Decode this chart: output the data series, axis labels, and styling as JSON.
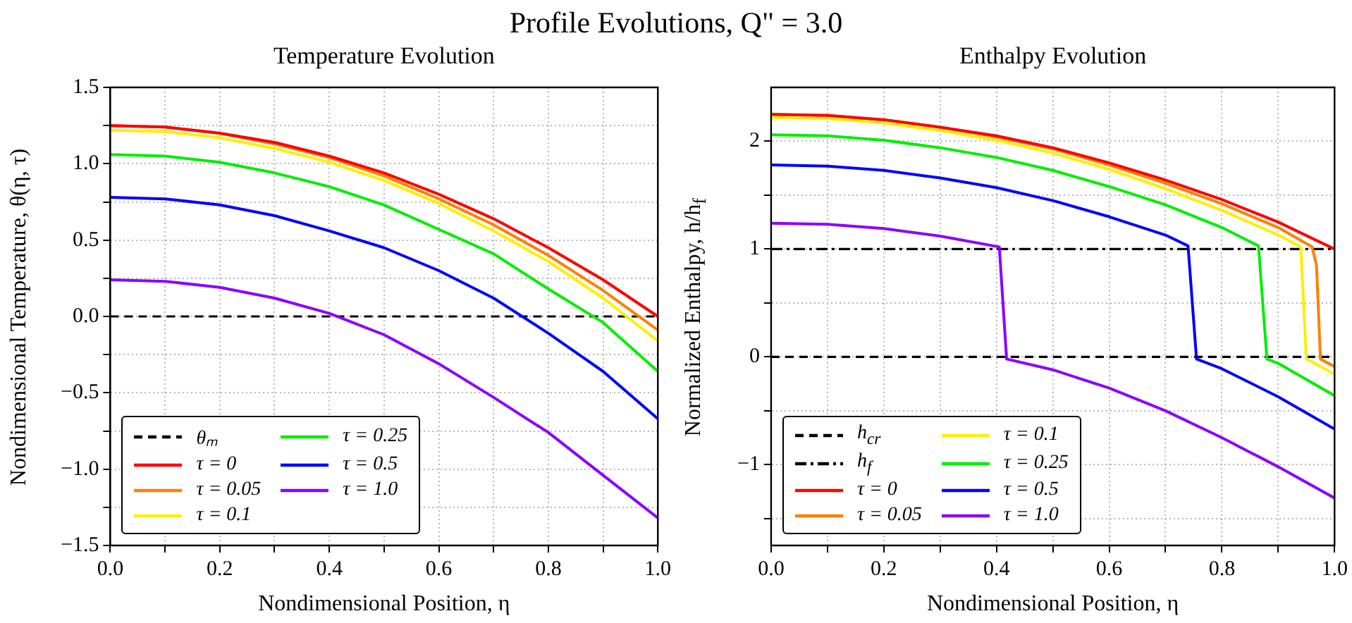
{
  "chart_data": [
    {
      "type": "line",
      "title": "Temperature Evolution",
      "xlabel": "Nondimensional Position, η",
      "ylabel": "Nondimensional Temperature, θ(η, τ)",
      "annotations": [
        "Profile Evolutions, Q\" = 3.0"
      ],
      "xlim": [
        0,
        1
      ],
      "xticks": [
        {
          "value": 0,
          "label": "0.0"
        },
        {
          "value": 0.1,
          "label": null
        },
        0.2,
        {
          "value": 0.3,
          "label": null
        },
        0.4,
        {
          "value": 0.5,
          "label": null
        },
        0.6,
        {
          "value": 0.7,
          "label": null
        },
        0.8,
        {
          "value": 0.9,
          "label": null
        },
        {
          "value": 1,
          "label": "1.0"
        }
      ],
      "ylim": [
        -1.5,
        1.5
      ],
      "yticks": [
        {
          "value": -1.5,
          "label": "−1.5"
        },
        {
          "value": -1.25,
          "label": null
        },
        {
          "value": -1,
          "label": "−1.0"
        },
        {
          "value": -0.75,
          "label": null
        },
        {
          "value": -0.5,
          "label": "−0.5"
        },
        {
          "value": -0.25,
          "label": null
        },
        {
          "value": 0,
          "label": "0.0"
        },
        {
          "value": 0.25,
          "label": null
        },
        0.5,
        {
          "value": 0.75,
          "label": null
        },
        {
          "value": 1,
          "label": "1.0"
        },
        {
          "value": 1.25,
          "label": null
        },
        1.5
      ],
      "grid": true,
      "legend": "bottom left",
      "x": [
        0,
        0.1,
        0.2,
        0.3,
        0.4,
        0.5,
        0.6,
        0.7,
        0.8,
        0.9,
        1
      ],
      "series": [
        {
          "name": "θₘ",
          "color": "#000000",
          "x": [
            0,
            1
          ],
          "values": [
            0,
            0
          ],
          "line_style": "dashed"
        },
        {
          "name": "τ = 0",
          "color": "#ff0000",
          "values": [
            1.25,
            1.24,
            1.2,
            1.14,
            1.05,
            0.94,
            0.8,
            0.64,
            0.45,
            0.24,
            0
          ]
        },
        {
          "name": "τ = 0.05",
          "color": "#ff7f00",
          "values": [
            1.25,
            1.24,
            1.2,
            1.13,
            1.04,
            0.92,
            0.77,
            0.6,
            0.4,
            0.17,
            -0.09
          ]
        },
        {
          "name": "τ = 0.1",
          "color": "#ffee00",
          "values": [
            1.22,
            1.21,
            1.17,
            1.1,
            1.01,
            0.89,
            0.74,
            0.56,
            0.36,
            0.12,
            -0.16
          ]
        },
        {
          "name": "τ = 0.25",
          "color": "#00ee00",
          "values": [
            1.06,
            1.05,
            1.01,
            0.94,
            0.85,
            0.73,
            0.57,
            0.41,
            0.18,
            -0.04,
            -0.36
          ]
        },
        {
          "name": "τ = 0.5",
          "color": "#0000ff",
          "values": [
            0.78,
            0.77,
            0.73,
            0.66,
            0.56,
            0.45,
            0.3,
            0.12,
            -0.11,
            -0.36,
            -0.67
          ]
        },
        {
          "name": "τ = 1.0",
          "color": "#8b00ff",
          "values": [
            0.24,
            0.23,
            0.19,
            0.12,
            0.02,
            -0.12,
            -0.31,
            -0.53,
            -0.76,
            -1.04,
            -1.32
          ]
        }
      ]
    },
    {
      "type": "line",
      "title": "Enthalpy Evolution",
      "xlabel": "Nondimensional Position, η",
      "ylabel": "Normalized Enthalpy, h/h$_{f}$",
      "xlim": [
        0,
        1
      ],
      "xticks": [
        {
          "value": 0,
          "label": "0.0"
        },
        {
          "value": 0.1,
          "label": null
        },
        0.2,
        {
          "value": 0.3,
          "label": null
        },
        0.4,
        {
          "value": 0.5,
          "label": null
        },
        0.6,
        {
          "value": 0.7,
          "label": null
        },
        0.8,
        {
          "value": 0.9,
          "label": null
        },
        {
          "value": 1,
          "label": "1.0"
        }
      ],
      "ylim": [
        -1.75,
        2.5
      ],
      "yticks": [
        {
          "value": -1.5,
          "label": null
        },
        {
          "value": -1,
          "label": "−1"
        },
        {
          "value": -0.5,
          "label": null
        },
        0,
        {
          "value": 0.5,
          "label": null
        },
        1,
        {
          "value": 1.5,
          "label": null
        },
        2
      ],
      "grid": true,
      "legend": "bottom left",
      "series": [
        {
          "name": "h$_{cr}$",
          "color": "#000000",
          "x": [
            0,
            1
          ],
          "values": [
            0,
            0
          ],
          "line_style": "dashed"
        },
        {
          "name": "h$_{f}$",
          "color": "#000000",
          "x": [
            0,
            1
          ],
          "values": [
            1,
            1
          ],
          "line_style": "dashdot"
        },
        {
          "name": "τ = 0",
          "color": "#ff0000",
          "x": [
            0,
            0.1,
            0.2,
            0.3,
            0.4,
            0.5,
            0.6,
            0.7,
            0.8,
            0.9,
            1
          ],
          "values": [
            2.25,
            2.24,
            2.2,
            2.13,
            2.05,
            1.94,
            1.8,
            1.64,
            1.46,
            1.25,
            1
          ]
        },
        {
          "name": "τ = 0.05",
          "color": "#ff7f00",
          "x": [
            0,
            0.1,
            0.2,
            0.3,
            0.4,
            0.5,
            0.6,
            0.7,
            0.8,
            0.9,
            0.96,
            0.968,
            0.975,
            1
          ],
          "values": [
            2.25,
            2.24,
            2.2,
            2.13,
            2.04,
            1.93,
            1.78,
            1.61,
            1.42,
            1.2,
            1.02,
            0.85,
            -0.02,
            -0.09
          ]
        },
        {
          "name": "τ = 0.1",
          "color": "#ffee00",
          "x": [
            0,
            0.1,
            0.2,
            0.3,
            0.4,
            0.5,
            0.6,
            0.7,
            0.8,
            0.9,
            0.94,
            0.95,
            1
          ],
          "values": [
            2.22,
            2.21,
            2.17,
            2.1,
            2.01,
            1.89,
            1.74,
            1.56,
            1.36,
            1.13,
            1.02,
            -0.02,
            -0.16
          ]
        },
        {
          "name": "τ = 0.25",
          "color": "#00ee00",
          "x": [
            0,
            0.1,
            0.2,
            0.3,
            0.4,
            0.5,
            0.6,
            0.7,
            0.8,
            0.865,
            0.88,
            0.9,
            1
          ],
          "values": [
            2.06,
            2.05,
            2.01,
            1.94,
            1.85,
            1.73,
            1.58,
            1.41,
            1.2,
            1.03,
            -0.02,
            -0.06,
            -0.36
          ]
        },
        {
          "name": "τ = 0.5",
          "color": "#0000ff",
          "x": [
            0,
            0.1,
            0.2,
            0.3,
            0.4,
            0.5,
            0.6,
            0.7,
            0.74,
            0.755,
            0.8,
            0.9,
            1
          ],
          "values": [
            1.78,
            1.77,
            1.73,
            1.66,
            1.57,
            1.45,
            1.3,
            1.13,
            1.03,
            -0.02,
            -0.11,
            -0.37,
            -0.67
          ]
        },
        {
          "name": "τ = 1.0",
          "color": "#8b00ff",
          "x": [
            0,
            0.1,
            0.2,
            0.3,
            0.405,
            0.418,
            0.5,
            0.6,
            0.7,
            0.8,
            0.9,
            1
          ],
          "values": [
            1.24,
            1.23,
            1.19,
            1.12,
            1.02,
            -0.02,
            -0.12,
            -0.29,
            -0.5,
            -0.75,
            -1.02,
            -1.31
          ]
        }
      ]
    }
  ]
}
